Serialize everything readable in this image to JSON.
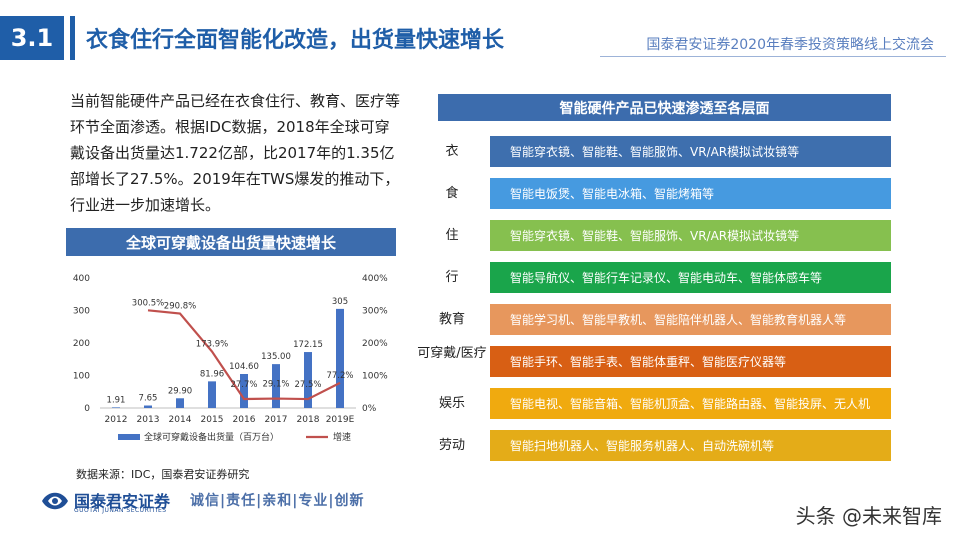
{
  "header": {
    "section_number": "3.1",
    "title": "衣食住行全面智能化改造，出货量快速增长",
    "event": "国泰君安证券2020年春季投资策略线上交流会"
  },
  "intro_text": "当前智能硬件产品已经在衣食住行、教育、医疗等环节全面渗透。根据IDC数据，2018年全球可穿戴设备出货量达1.722亿部，比2017年的1.35亿部增长了27.5%。2019年在TWS爆发的推动下，行业进一步加速增长。",
  "chart_data": {
    "type": "bar",
    "title": "全球可穿戴设备出货量快速增长",
    "categories": [
      "2012",
      "2013",
      "2014",
      "2015",
      "2016",
      "2017",
      "2018",
      "2019E"
    ],
    "ylim": [
      0,
      400
    ],
    "y_ticks": [
      "0",
      "100",
      "200",
      "300",
      "400"
    ],
    "y2lim": [
      0,
      400
    ],
    "y2_ticks": [
      "0%",
      "100%",
      "200%",
      "300%",
      "400%"
    ],
    "legend_position": "bottom",
    "grid": false,
    "series": [
      {
        "name": "全球可穿戴设备出货量（百万台）",
        "kind": "bar",
        "color": "#4472c4",
        "values": [
          1.91,
          7.65,
          29.9,
          81.96,
          104.6,
          135.0,
          172.15,
          305
        ],
        "labels": [
          "1.91",
          "7.65",
          "29.90",
          "81.96",
          "104.60",
          "135.00",
          "172.15",
          "305"
        ]
      },
      {
        "name": "增速",
        "kind": "line",
        "axis": "right",
        "color": "#c0504d",
        "values": [
          null,
          300.5,
          290.8,
          173.9,
          27.7,
          29.1,
          27.5,
          77.2
        ],
        "labels": [
          "",
          "300.5%",
          "290.8%",
          "173.9%",
          "27.7%",
          "29.1%",
          "27.5%",
          "77.2%"
        ]
      }
    ]
  },
  "source_note": "数据来源：IDC，国泰君安证券研究",
  "categories_panel": {
    "title": "智能硬件产品已快速渗透至各层面",
    "rows": [
      {
        "label": "衣",
        "text": "智能穿衣镜、智能鞋、智能服饰、VR/AR模拟试妆镜等",
        "color": "#3e6fae"
      },
      {
        "label": "食",
        "text": "智能电饭煲、智能电冰箱、智能烤箱等",
        "color": "#469ae0"
      },
      {
        "label": "住",
        "text": "智能穿衣镜、智能鞋、智能服饰、VR/AR模拟试妆镜等",
        "color": "#86c04f"
      },
      {
        "label": "行",
        "text": "智能导航仪、智能行车记录仪、智能电动车、智能体感车等",
        "color": "#1aa54b"
      },
      {
        "label": "教育",
        "text": "智能学习机、智能早教机、智能陪伴机器人、智能教育机器人等",
        "color": "#e7975d"
      },
      {
        "label": "可穿戴/医疗",
        "text": "智能手环、智能手表、智能体重秤、智能医疗仪器等",
        "color": "#d85f14"
      },
      {
        "label": "娱乐",
        "text": "智能电视、智能音箱、智能机顶盒、智能路由器、智能投屏、无人机",
        "color": "#f0aa0f"
      },
      {
        "label": "劳动",
        "text": "智能扫地机器人、智能服务机器人、自动洗碗机等",
        "color": "#e4ac18"
      }
    ]
  },
  "footer": {
    "logo_cn": "国泰君安证券",
    "logo_en": "GUOTAI JUNAN SECURITIES",
    "slogan": "诚信|责任|亲和|专业|创新",
    "watermark": "头条 @未来智库"
  }
}
